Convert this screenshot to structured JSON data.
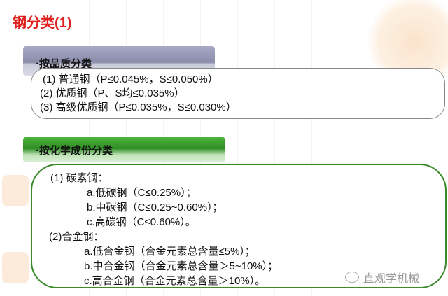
{
  "title": "钢分类(1)",
  "section1": {
    "header": "·按品质分类",
    "items": [
      "(1) 普通钢（P≤0.045%，S≤0.050%）",
      "(2) 优质钢（P、S均≤0.035%）",
      "(3) 高级优质钢（P≤0.035%，S≤0.030%）"
    ]
  },
  "section2": {
    "header": "·按化学成份分类",
    "group1": {
      "label": "(1) 碳素钢：",
      "items": [
        "a.低碳钢（C≤0.25%）；",
        "b.中碳钢（C≤0.25~0.60%）；",
        "c.高碳钢（C≤0.60%）。"
      ]
    },
    "group2": {
      "label": "(2)合金钢：",
      "items": [
        "a.低合金钢（合金元素总含量≤5%）；",
        "b.中合金钢（合金元素总含量＞5~10%）；",
        "c.高合金钢（合金元素总含量＞10%）。"
      ]
    }
  },
  "watermark": {
    "icon": "wechat-icon",
    "text": "直观学机械"
  },
  "colors": {
    "title": "#e0201c",
    "green": "#3a8a2a"
  }
}
